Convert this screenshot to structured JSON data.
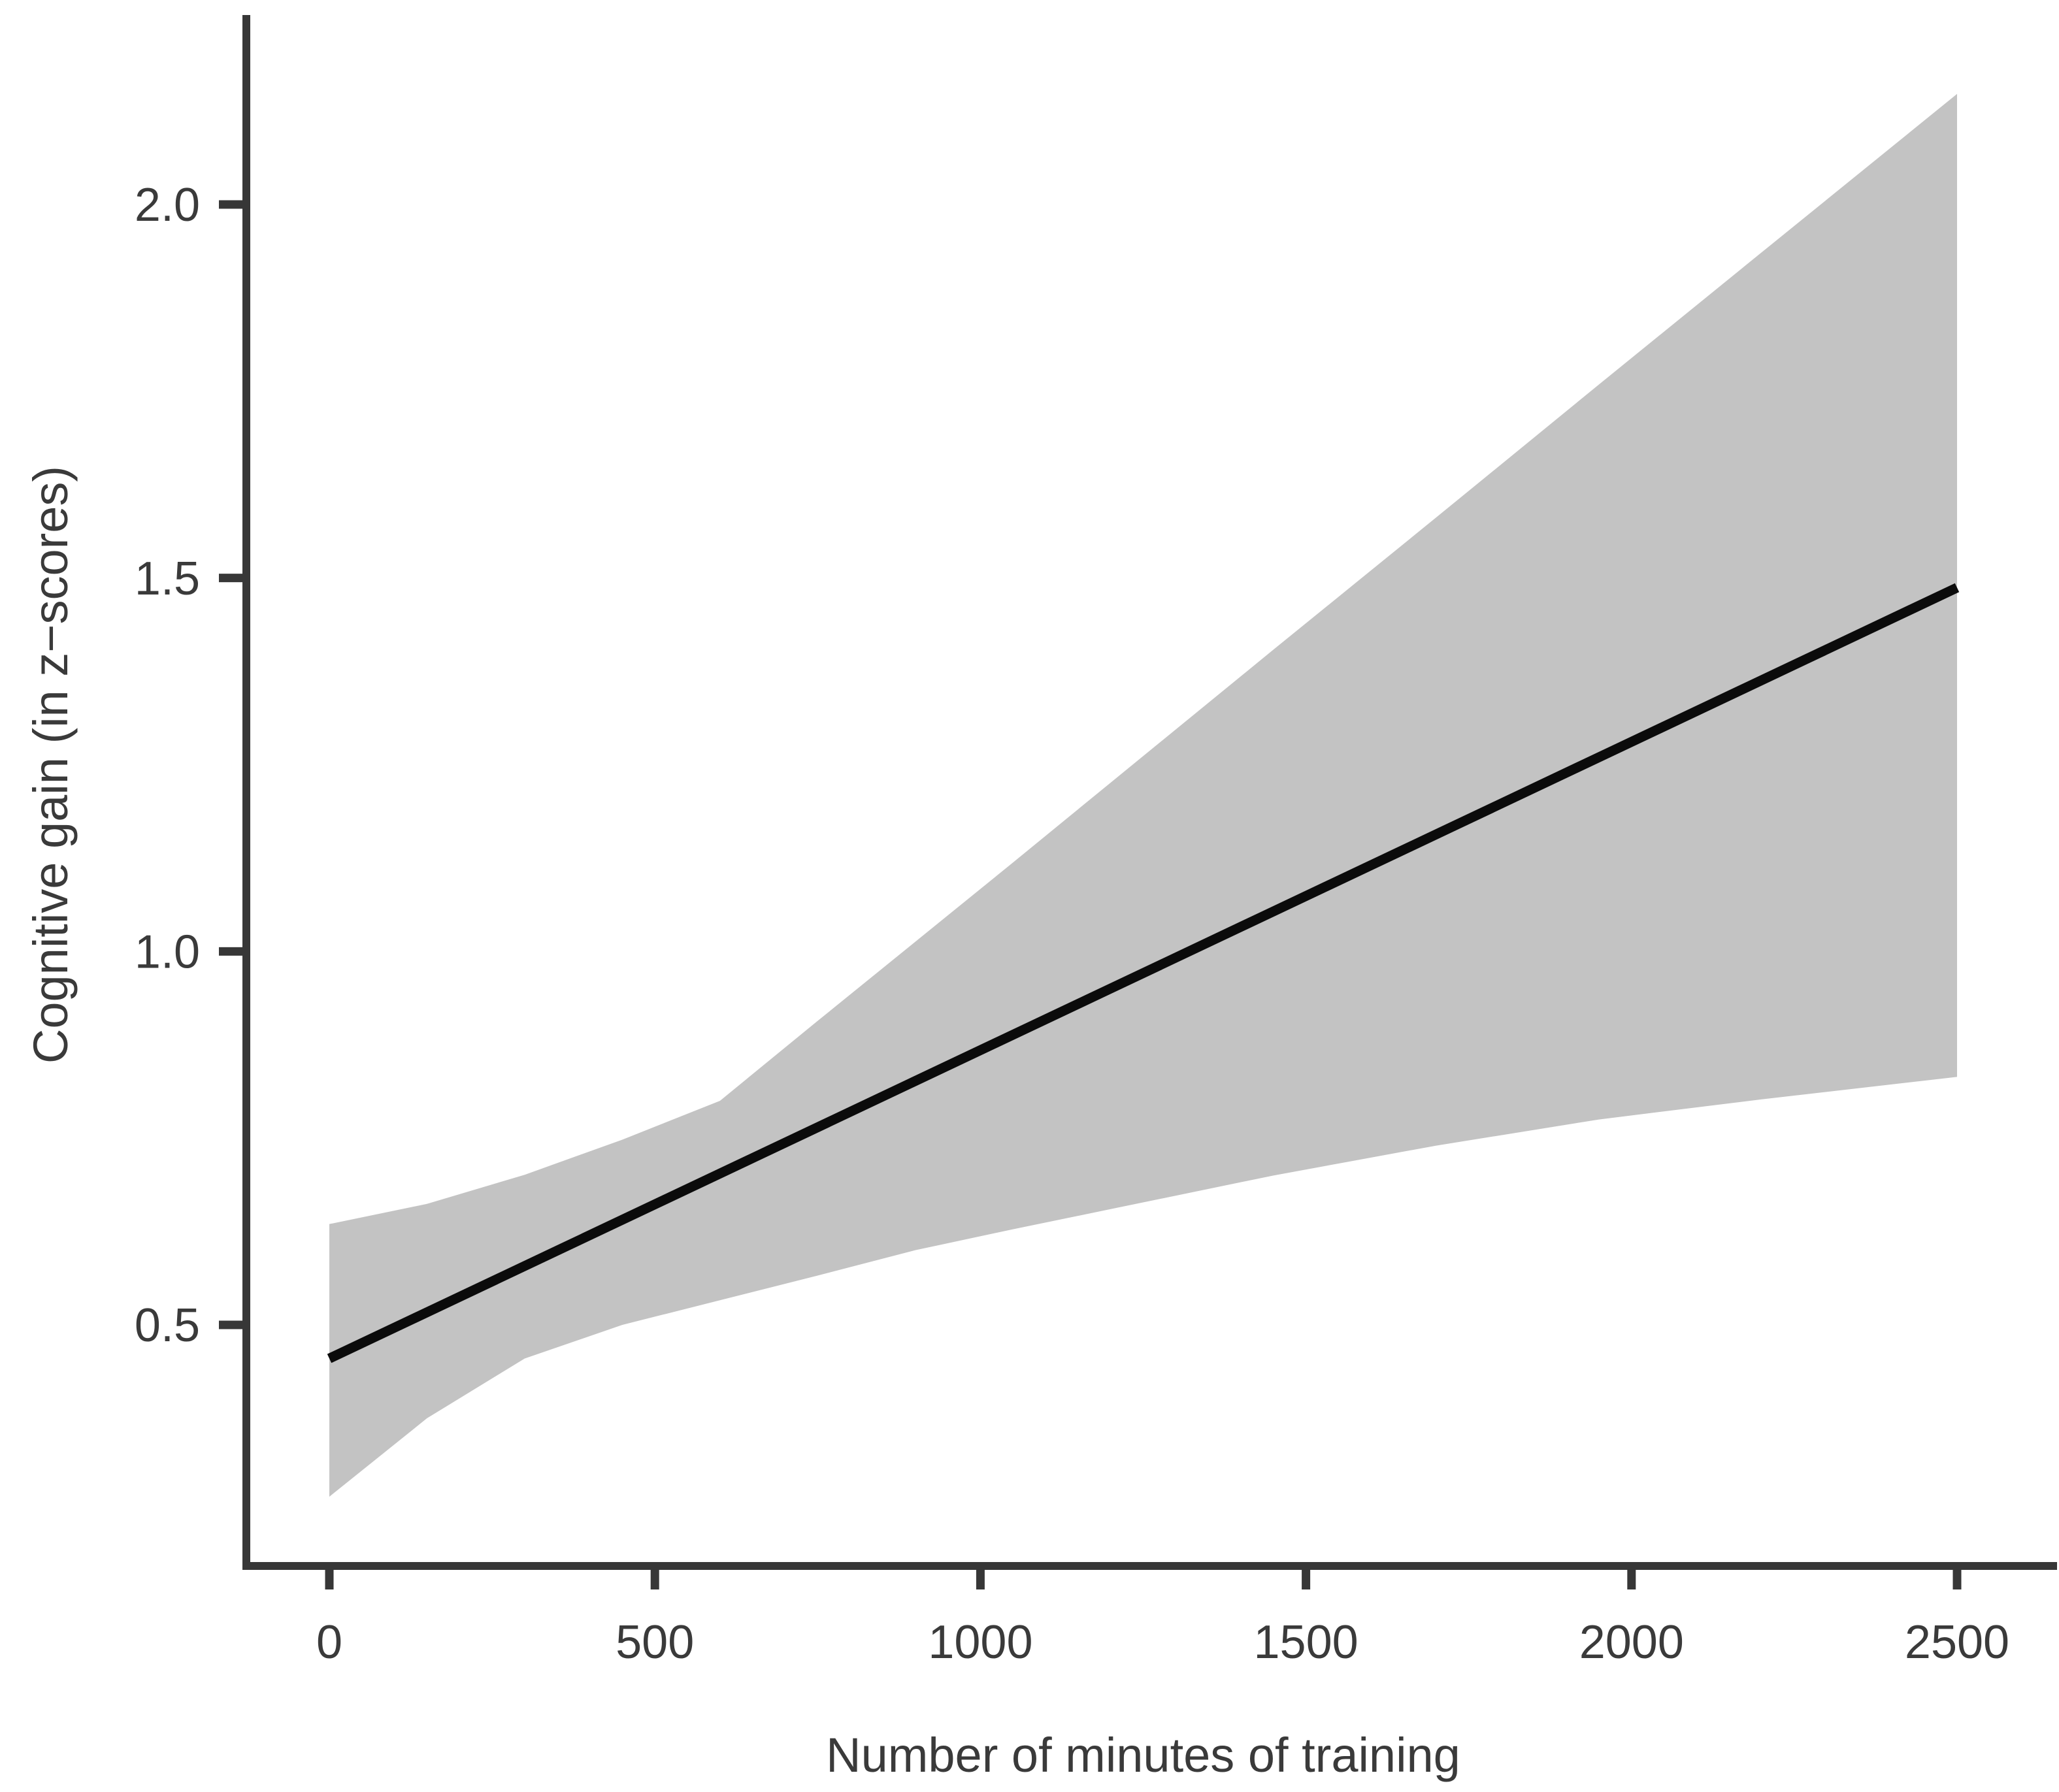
{
  "figure": {
    "background": "#ffffff"
  },
  "chart_data": {
    "type": "line",
    "title": "",
    "xlabel": "Number of minutes of training",
    "ylabel": "Cognitive gain (in z−scores)",
    "x_ticks": [
      0,
      500,
      1000,
      1500,
      2000,
      2500
    ],
    "x_tick_labels": [
      "0",
      "500",
      "1000",
      "1500",
      "2000",
      "2500"
    ],
    "y_ticks": [
      0.5,
      1.0,
      1.5,
      2.0
    ],
    "y_tick_labels": [
      "0.5",
      "1.0",
      "1.5",
      "2.0"
    ],
    "x_range": [
      -130,
      2640
    ],
    "y_range": [
      0.18,
      2.25
    ],
    "grid": false,
    "legend": false,
    "series": [
      {
        "name": "fitted regression line",
        "type": "line",
        "color": "#0b0b0b",
        "x": [
          0,
          2500
        ],
        "y": [
          0.455,
          1.487
        ]
      },
      {
        "name": "95% confidence band",
        "type": "area",
        "color": "#c3c3c3",
        "x": [
          0,
          150,
          300,
          450,
          600,
          750,
          900,
          1050,
          1200,
          1450,
          1700,
          1950,
          2200,
          2500
        ],
        "upper": [
          0.635,
          0.662,
          0.701,
          0.748,
          0.8,
          0.907,
          1.013,
          1.119,
          1.226,
          1.404,
          1.581,
          1.759,
          1.936,
          2.148
        ],
        "lower": [
          0.27,
          0.375,
          0.455,
          0.5,
          0.533,
          0.566,
          0.6,
          0.628,
          0.655,
          0.7,
          0.74,
          0.775,
          0.802,
          0.832
        ]
      }
    ],
    "colors": {
      "axis": "#373737",
      "tick_label": "#3a3a3a",
      "axis_title": "#3a3a3a",
      "band": "#c3c3c3",
      "line": "#0b0b0b"
    }
  }
}
